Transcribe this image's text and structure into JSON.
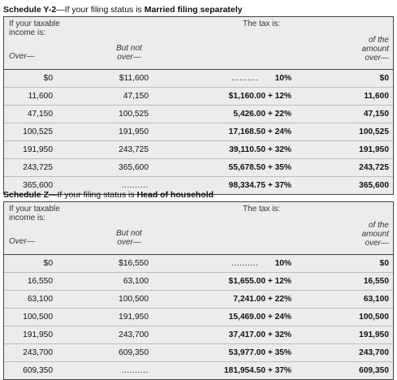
{
  "schedules": [
    {
      "title_prefix": "Schedule Y-2",
      "title_mid": "—If your filing status is ",
      "title_bold": "Married filing separately",
      "hdr": {
        "income_line1": "If your taxable",
        "income_line2": "income is:",
        "tax_is": "The tax is:",
        "over": "Over—",
        "but_not_1": "But not",
        "but_not_2": "over—",
        "of_the_1": "of the",
        "of_the_2": "amount",
        "of_the_3": "over—"
      },
      "rows": [
        {
          "over": "$0",
          "but_not": "$11,600",
          "tax_dots": "..........",
          "tax": "10%",
          "of_amount": "$0"
        },
        {
          "over": "11,600",
          "but_not": "47,150",
          "tax_dots": "",
          "tax": "$1,160.00 + 12%",
          "of_amount": "11,600"
        },
        {
          "over": "47,150",
          "but_not": "100,525",
          "tax_dots": "",
          "tax": "5,426.00 + 22%",
          "of_amount": "47,150"
        },
        {
          "over": "100,525",
          "but_not": "191,950",
          "tax_dots": "",
          "tax": "17,168.50 + 24%",
          "of_amount": "100,525"
        },
        {
          "over": "191,950",
          "but_not": "243,725",
          "tax_dots": "",
          "tax": "39,110.50 + 32%",
          "of_amount": "191,950"
        },
        {
          "over": "243,725",
          "but_not": "365,600",
          "tax_dots": "",
          "tax": "55,678.50 + 35%",
          "of_amount": "243,725"
        },
        {
          "over": "365,600",
          "but_not": "..........",
          "tax_dots": "",
          "tax": "98,334.75 + 37%",
          "of_amount": "365,600"
        }
      ]
    },
    {
      "title_prefix": "Schedule Z",
      "title_mid": "—If your filing status is ",
      "title_bold": "Head of household",
      "hdr": {
        "income_line1": "If your taxable",
        "income_line2": "income is:",
        "tax_is": "The tax is:",
        "over": "Over—",
        "but_not_1": "But not",
        "but_not_2": "over—",
        "of_the_1": "of the",
        "of_the_2": "amount",
        "of_the_3": "over—"
      },
      "rows": [
        {
          "over": "$0",
          "but_not": "$16,550",
          "tax_dots": "..........",
          "tax": "10%",
          "of_amount": "$0"
        },
        {
          "over": "16,550",
          "but_not": "63,100",
          "tax_dots": "",
          "tax": "$1,655.00 + 12%",
          "of_amount": "16,550"
        },
        {
          "over": "63,100",
          "but_not": "100,500",
          "tax_dots": "",
          "tax": "7,241.00 + 22%",
          "of_amount": "63,100"
        },
        {
          "over": "100,500",
          "but_not": "191,950",
          "tax_dots": "",
          "tax": "15,469.00 + 24%",
          "of_amount": "100,500"
        },
        {
          "over": "191,950",
          "but_not": "243,700",
          "tax_dots": "",
          "tax": "37,417.00 + 32%",
          "of_amount": "191,950"
        },
        {
          "over": "243,700",
          "but_not": "609,350",
          "tax_dots": "",
          "tax": "53,977.00 + 35%",
          "of_amount": "243,700"
        },
        {
          "over": "609,350",
          "but_not": "..........",
          "tax_dots": "",
          "tax": "181,954.50 + 37%",
          "of_amount": "609,350"
        }
      ]
    }
  ]
}
